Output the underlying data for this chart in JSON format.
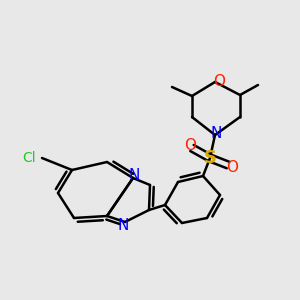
{
  "bg_color": "#e8e8e8",
  "bond_color": "#000000",
  "bond_width": 1.8,
  "figsize": [
    3.0,
    3.0
  ],
  "dpi": 100,
  "xlim": [
    0,
    300
  ],
  "ylim": [
    0,
    300
  ]
}
